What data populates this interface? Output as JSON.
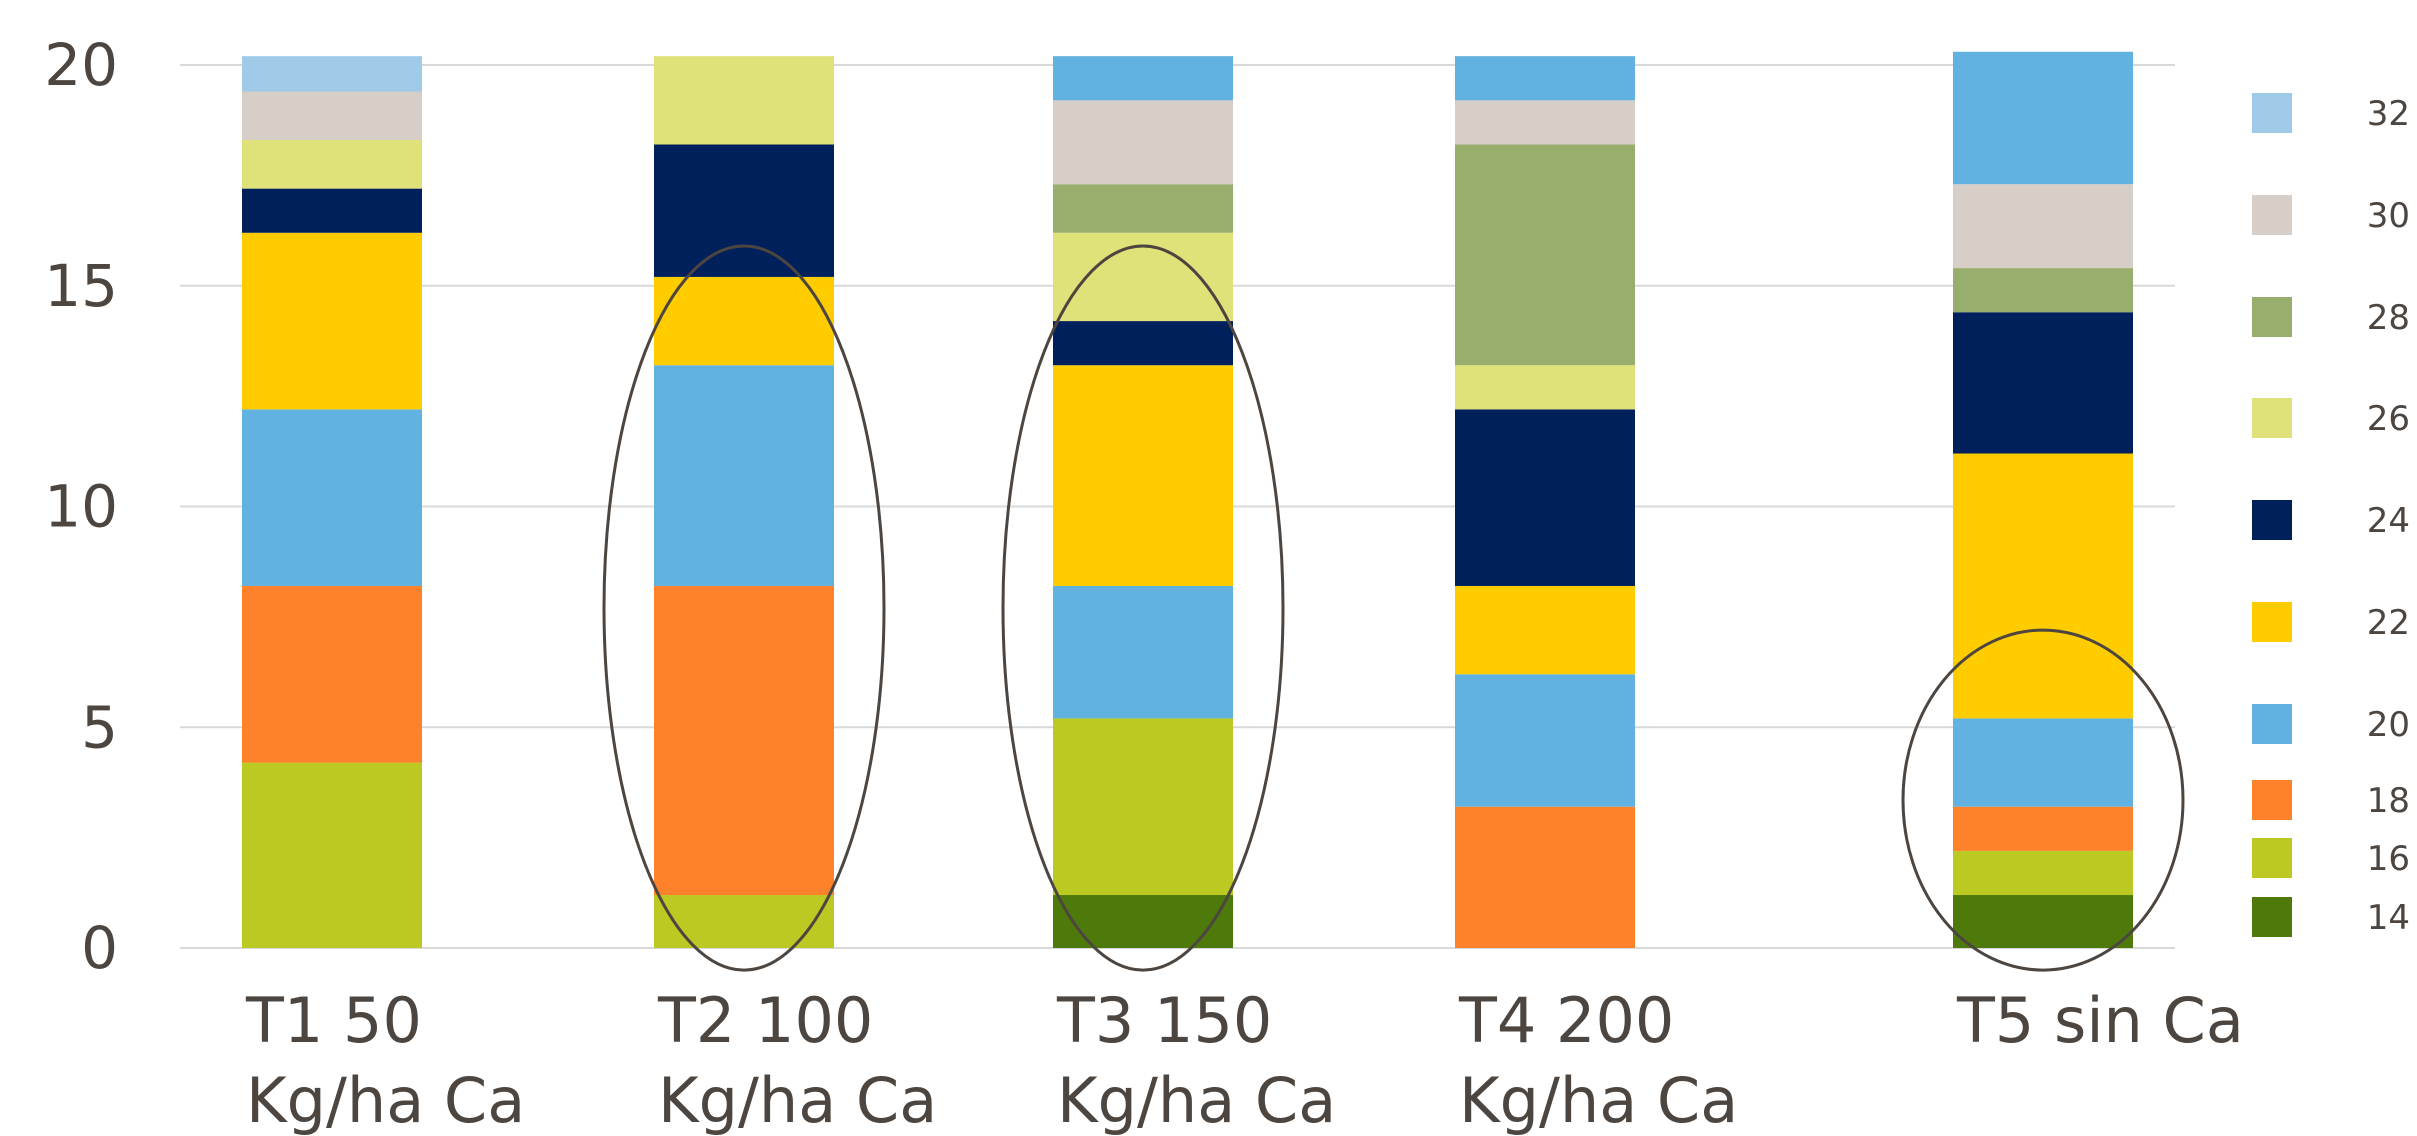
{
  "chart_data": {
    "type": "bar",
    "stacked": true,
    "categories": [
      [
        "T1 50",
        "Kg/ha Ca"
      ],
      [
        "T2 100",
        "Kg/ha Ca"
      ],
      [
        "T3 150",
        "Kg/ha Ca"
      ],
      [
        "T4 200",
        "Kg/ha Ca"
      ],
      [
        "T5 sin Ca",
        ""
      ]
    ],
    "ylim": [
      0,
      20
    ],
    "yticks": [
      "0",
      "5",
      "10",
      "15",
      "20"
    ],
    "grid": true,
    "legend_position": "right",
    "series": [
      {
        "name": "14",
        "color": "#4e7a0b",
        "values": [
          0,
          0,
          1.2,
          0,
          1.2
        ]
      },
      {
        "name": "16",
        "color": "#bcc922",
        "values": [
          4.2,
          1.2,
          4,
          0,
          1
        ]
      },
      {
        "name": "18",
        "color": "#fe812b",
        "values": [
          4,
          7,
          0,
          3.2,
          1
        ]
      },
      {
        "name": "20",
        "color": "#62b2e1",
        "values": [
          4,
          5,
          3,
          3,
          2
        ]
      },
      {
        "name": "22",
        "color": "#ffcc00",
        "values": [
          4,
          2,
          5,
          2,
          6
        ]
      },
      {
        "name": "24",
        "color": "#00205b",
        "values": [
          1,
          3,
          1,
          4,
          3.2
        ]
      },
      {
        "name": "26",
        "color": "#dfe279",
        "values": [
          1.1,
          2,
          2,
          1,
          0
        ]
      },
      {
        "name": "28",
        "color": "#98ae6d",
        "values": [
          0,
          0,
          1.1,
          5,
          1
        ]
      },
      {
        "name": "30",
        "color": "#d6cec7",
        "values": [
          1.1,
          0,
          1.9,
          1,
          1.9
        ]
      },
      {
        "name": "20",
        "color": "#62b2e1",
        "values": [
          0,
          0,
          1,
          1,
          3
        ]
      },
      {
        "name": "32",
        "color": "#9fcbe9",
        "values": [
          0.8,
          0,
          0,
          0,
          0
        ]
      }
    ],
    "legend": [
      {
        "label": "32",
        "color": "#9fcbe9"
      },
      {
        "label": "30",
        "color": "#d6cec7"
      },
      {
        "label": "28",
        "color": "#98ae6d"
      },
      {
        "label": "26",
        "color": "#dfe279"
      },
      {
        "label": "24",
        "color": "#00205b"
      },
      {
        "label": "22",
        "color": "#ffcc00"
      },
      {
        "label": "20",
        "color": "#62b2e1"
      },
      {
        "label": "18",
        "color": "#fe812b"
      },
      {
        "label": "16",
        "color": "#bcc922"
      },
      {
        "label": "14",
        "color": "#4e7a0b"
      }
    ],
    "highlights": [
      {
        "category_index": 1,
        "y_range": [
          -0.5,
          15.9
        ]
      },
      {
        "category_index": 2,
        "y_range": [
          -0.5,
          15.9
        ]
      },
      {
        "category_index": 4,
        "y_range": [
          -0.5,
          7.2
        ]
      }
    ]
  }
}
